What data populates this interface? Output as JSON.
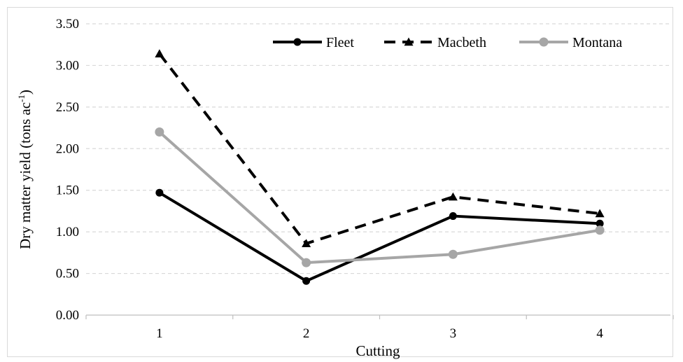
{
  "chart_data": {
    "type": "line",
    "categories": [
      "1",
      "2",
      "3",
      "4"
    ],
    "xlabel": "Cutting",
    "ylabel_main": "Dry matter yield (tons ac",
    "ylabel_sup": "-1",
    "ylabel_end": ")",
    "ylim": [
      0,
      3.5
    ],
    "yticks": [
      0,
      0.5,
      1.0,
      1.5,
      2.0,
      2.5,
      3.0,
      3.5
    ],
    "ytick_labels": [
      "0.00",
      "0.50",
      "1.00",
      "1.50",
      "2.00",
      "2.50",
      "3.00",
      "3.50"
    ],
    "grid": true,
    "legend_position": "top-right",
    "series": [
      {
        "name": "Fleet",
        "values": [
          1.47,
          0.41,
          1.19,
          1.1
        ],
        "color": "#000000",
        "dash": "solid",
        "marker": "circle"
      },
      {
        "name": "Macbeth",
        "values": [
          3.14,
          0.86,
          1.42,
          1.22
        ],
        "color": "#000000",
        "dash": "dashed",
        "marker": "triangle"
      },
      {
        "name": "Montana",
        "values": [
          2.2,
          0.63,
          0.73,
          1.02
        ],
        "color": "#a6a6a6",
        "dash": "solid",
        "marker": "circle"
      }
    ]
  }
}
